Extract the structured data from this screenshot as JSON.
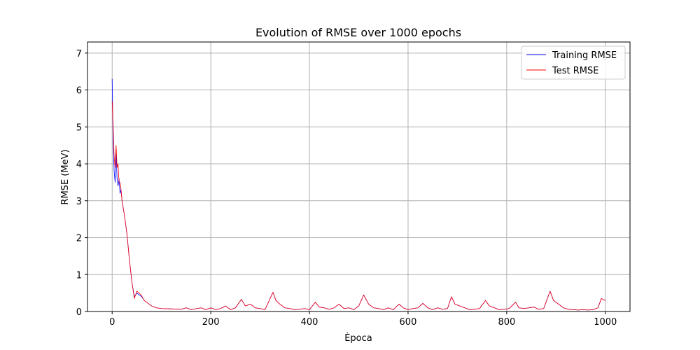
{
  "chart_data": {
    "type": "line",
    "title": "Evolution of RMSE over 1000 epochs",
    "xlabel": "Època",
    "ylabel": "RMSE (MeV)",
    "xlim": [
      -50,
      1050
    ],
    "ylim": [
      0,
      7.3
    ],
    "xticks": [
      0,
      200,
      400,
      600,
      800,
      1000
    ],
    "yticks": [
      0,
      1,
      2,
      3,
      4,
      5,
      6,
      7
    ],
    "grid": true,
    "legend_position": "top-right",
    "series": [
      {
        "name": "Training RMSE",
        "color": "#0000ff",
        "x": [
          0,
          2,
          4,
          6,
          8,
          10,
          12,
          14,
          16,
          18,
          20,
          25,
          30,
          35,
          40,
          45,
          50,
          55,
          60,
          65,
          70,
          80,
          90,
          100,
          120,
          140,
          150,
          160,
          180,
          190,
          200,
          210,
          220,
          230,
          240,
          250,
          262,
          270,
          280,
          290,
          300,
          310,
          326,
          332,
          340,
          350,
          360,
          370,
          380,
          390,
          400,
          412,
          420,
          430,
          440,
          450,
          460,
          470,
          480,
          490,
          500,
          510,
          520,
          530,
          540,
          550,
          560,
          570,
          582,
          590,
          600,
          610,
          620,
          630,
          640,
          650,
          660,
          670,
          680,
          688,
          695,
          705,
          715,
          725,
          735,
          745,
          757,
          765,
          775,
          785,
          795,
          805,
          818,
          825,
          835,
          845,
          855,
          865,
          875,
          888,
          895,
          905,
          915,
          925,
          935,
          945,
          955,
          965,
          975,
          985,
          992,
          1000
        ],
        "y": [
          6.3,
          4.6,
          3.8,
          3.5,
          4.3,
          3.6,
          3.4,
          3.6,
          3.2,
          3.3,
          3.0,
          2.6,
          2.1,
          1.4,
          0.8,
          0.4,
          0.5,
          0.45,
          0.4,
          0.3,
          0.25,
          0.15,
          0.1,
          0.08,
          0.07,
          0.06,
          0.1,
          0.05,
          0.1,
          0.05,
          0.1,
          0.05,
          0.08,
          0.15,
          0.05,
          0.1,
          0.33,
          0.15,
          0.2,
          0.1,
          0.08,
          0.05,
          0.52,
          0.3,
          0.2,
          0.1,
          0.08,
          0.05,
          0.06,
          0.08,
          0.05,
          0.25,
          0.12,
          0.1,
          0.06,
          0.1,
          0.2,
          0.08,
          0.1,
          0.05,
          0.15,
          0.45,
          0.2,
          0.1,
          0.08,
          0.05,
          0.1,
          0.05,
          0.2,
          0.1,
          0.05,
          0.08,
          0.1,
          0.22,
          0.1,
          0.05,
          0.1,
          0.06,
          0.08,
          0.4,
          0.2,
          0.15,
          0.1,
          0.05,
          0.06,
          0.08,
          0.3,
          0.15,
          0.1,
          0.05,
          0.06,
          0.08,
          0.25,
          0.1,
          0.08,
          0.1,
          0.12,
          0.06,
          0.08,
          0.55,
          0.3,
          0.2,
          0.1,
          0.06,
          0.05,
          0.04,
          0.05,
          0.04,
          0.05,
          0.1,
          0.35,
          0.3
        ]
      },
      {
        "name": "Test RMSE",
        "color": "#ff0000",
        "x": [
          0,
          2,
          4,
          6,
          8,
          10,
          12,
          14,
          16,
          18,
          20,
          25,
          30,
          35,
          40,
          45,
          50,
          55,
          60,
          65,
          70,
          80,
          90,
          100,
          120,
          140,
          150,
          160,
          180,
          190,
          200,
          210,
          220,
          230,
          240,
          250,
          262,
          270,
          280,
          290,
          300,
          310,
          326,
          332,
          340,
          350,
          360,
          370,
          380,
          390,
          400,
          412,
          420,
          430,
          440,
          450,
          460,
          470,
          480,
          490,
          500,
          510,
          520,
          530,
          540,
          550,
          560,
          570,
          582,
          590,
          600,
          610,
          620,
          630,
          640,
          650,
          660,
          670,
          680,
          688,
          695,
          705,
          715,
          725,
          735,
          745,
          757,
          765,
          775,
          785,
          795,
          805,
          818,
          825,
          835,
          845,
          855,
          865,
          875,
          888,
          895,
          905,
          915,
          925,
          935,
          945,
          955,
          965,
          975,
          985,
          992,
          1000
        ],
        "y": [
          5.7,
          5.0,
          4.2,
          3.9,
          4.5,
          3.9,
          4.0,
          3.5,
          3.5,
          3.3,
          3.0,
          2.6,
          2.1,
          1.4,
          0.8,
          0.35,
          0.55,
          0.5,
          0.42,
          0.3,
          0.25,
          0.15,
          0.1,
          0.08,
          0.07,
          0.06,
          0.1,
          0.05,
          0.1,
          0.05,
          0.1,
          0.05,
          0.08,
          0.15,
          0.05,
          0.1,
          0.33,
          0.15,
          0.2,
          0.1,
          0.08,
          0.05,
          0.52,
          0.3,
          0.2,
          0.1,
          0.08,
          0.05,
          0.06,
          0.08,
          0.05,
          0.25,
          0.12,
          0.1,
          0.06,
          0.1,
          0.2,
          0.08,
          0.1,
          0.05,
          0.15,
          0.45,
          0.2,
          0.1,
          0.08,
          0.05,
          0.1,
          0.05,
          0.2,
          0.1,
          0.05,
          0.08,
          0.1,
          0.22,
          0.1,
          0.05,
          0.1,
          0.06,
          0.08,
          0.4,
          0.2,
          0.15,
          0.1,
          0.05,
          0.06,
          0.08,
          0.3,
          0.15,
          0.1,
          0.05,
          0.06,
          0.08,
          0.25,
          0.1,
          0.08,
          0.1,
          0.12,
          0.06,
          0.08,
          0.55,
          0.3,
          0.2,
          0.1,
          0.06,
          0.05,
          0.04,
          0.05,
          0.04,
          0.05,
          0.1,
          0.35,
          0.3
        ]
      }
    ]
  }
}
